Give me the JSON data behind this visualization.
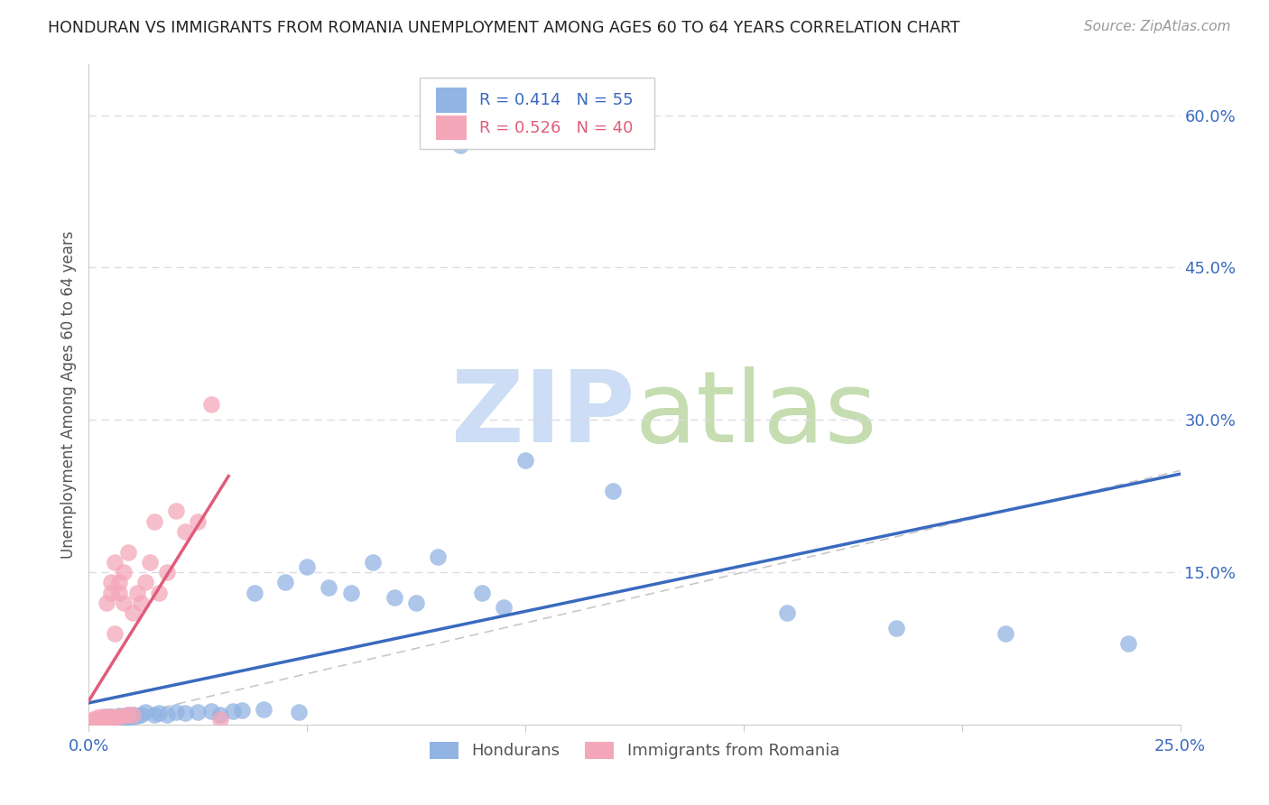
{
  "title": "HONDURAN VS IMMIGRANTS FROM ROMANIA UNEMPLOYMENT AMONG AGES 60 TO 64 YEARS CORRELATION CHART",
  "source": "Source: ZipAtlas.com",
  "ylabel": "Unemployment Among Ages 60 to 64 years",
  "xlim": [
    0.0,
    0.25
  ],
  "ylim": [
    0.0,
    0.65
  ],
  "honduran_R": 0.414,
  "honduran_N": 55,
  "romania_R": 0.526,
  "romania_N": 40,
  "blue_color": "#92b4e3",
  "pink_color": "#f4a7b9",
  "blue_line_color": "#3a6abf",
  "pink_line_color": "#e05c7a",
  "diagonal_color": "#c8c8c8",
  "grid_color": "#e0d8e8",
  "background_color": "#ffffff",
  "honduran_x": [
    0.001,
    0.002,
    0.002,
    0.003,
    0.003,
    0.003,
    0.004,
    0.004,
    0.004,
    0.005,
    0.005,
    0.005,
    0.006,
    0.006,
    0.007,
    0.007,
    0.008,
    0.008,
    0.009,
    0.009,
    0.01,
    0.01,
    0.011,
    0.012,
    0.013,
    0.015,
    0.016,
    0.018,
    0.02,
    0.022,
    0.025,
    0.028,
    0.03,
    0.033,
    0.035,
    0.038,
    0.04,
    0.045,
    0.048,
    0.05,
    0.055,
    0.06,
    0.065,
    0.07,
    0.075,
    0.08,
    0.085,
    0.09,
    0.095,
    0.1,
    0.12,
    0.16,
    0.185,
    0.21,
    0.238
  ],
  "honduran_y": [
    0.002,
    0.003,
    0.004,
    0.003,
    0.005,
    0.006,
    0.004,
    0.006,
    0.008,
    0.005,
    0.006,
    0.008,
    0.005,
    0.007,
    0.006,
    0.009,
    0.007,
    0.008,
    0.007,
    0.01,
    0.008,
    0.01,
    0.009,
    0.01,
    0.012,
    0.01,
    0.011,
    0.01,
    0.012,
    0.011,
    0.012,
    0.013,
    0.01,
    0.013,
    0.014,
    0.13,
    0.015,
    0.14,
    0.012,
    0.155,
    0.135,
    0.13,
    0.16,
    0.125,
    0.12,
    0.165,
    0.57,
    0.13,
    0.115,
    0.26,
    0.23,
    0.11,
    0.095,
    0.09,
    0.08
  ],
  "romania_x": [
    0.001,
    0.001,
    0.002,
    0.002,
    0.002,
    0.003,
    0.003,
    0.003,
    0.004,
    0.004,
    0.004,
    0.005,
    0.005,
    0.005,
    0.005,
    0.006,
    0.006,
    0.006,
    0.007,
    0.007,
    0.007,
    0.008,
    0.008,
    0.008,
    0.009,
    0.009,
    0.01,
    0.01,
    0.011,
    0.012,
    0.013,
    0.014,
    0.015,
    0.016,
    0.018,
    0.02,
    0.022,
    0.025,
    0.028,
    0.03
  ],
  "romania_y": [
    0.003,
    0.005,
    0.003,
    0.005,
    0.007,
    0.004,
    0.006,
    0.008,
    0.005,
    0.007,
    0.12,
    0.006,
    0.008,
    0.13,
    0.14,
    0.007,
    0.09,
    0.16,
    0.008,
    0.13,
    0.14,
    0.009,
    0.12,
    0.15,
    0.01,
    0.17,
    0.01,
    0.11,
    0.13,
    0.12,
    0.14,
    0.16,
    0.2,
    0.13,
    0.15,
    0.21,
    0.19,
    0.2,
    0.315,
    0.005
  ]
}
